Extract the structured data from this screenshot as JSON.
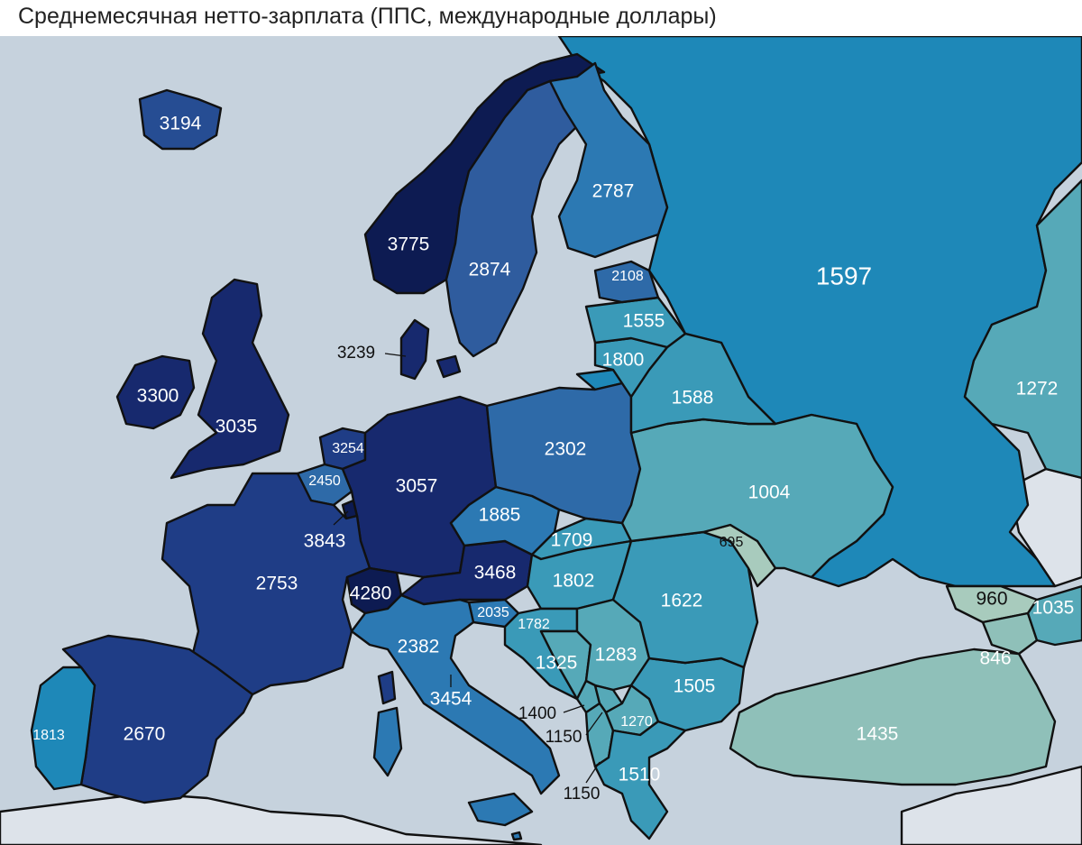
{
  "title": "Среднемесячная нетто-зарплата (ППС, международные доллары)",
  "colors": {
    "sea": "#c6d2dd",
    "nodata": "#dde3ea",
    "label_light": "#ffffff",
    "label_dark": "#111111",
    "scale": [
      "#0d1b52",
      "#17296e",
      "#1f3d86",
      "#264d93",
      "#2f5c9e",
      "#2e6aa8",
      "#2c79b3",
      "#1e88b8",
      "#3a9ab8",
      "#56a9b8",
      "#8fc0b9",
      "#a8cbbd"
    ]
  },
  "countries": {
    "iceland": {
      "value": "3194"
    },
    "norway": {
      "value": "3775"
    },
    "sweden": {
      "value": "2874"
    },
    "finland": {
      "value": "2787"
    },
    "denmark": {
      "value": "3239"
    },
    "ireland": {
      "value": "3300"
    },
    "uk": {
      "value": "3035"
    },
    "netherlands": {
      "value": "3254"
    },
    "belgium": {
      "value": "2450"
    },
    "luxembourg": {
      "value": "3843"
    },
    "germany": {
      "value": "3057"
    },
    "france": {
      "value": "2753"
    },
    "switzerland": {
      "value": "4280"
    },
    "austria": {
      "value": "3468"
    },
    "czechia": {
      "value": "1885"
    },
    "poland": {
      "value": "2302"
    },
    "slovakia": {
      "value": "1709"
    },
    "hungary": {
      "value": "1802"
    },
    "slovenia": {
      "value": "2035"
    },
    "croatia": {
      "value": "1782"
    },
    "bosnia": {
      "value": "1325"
    },
    "serbia": {
      "value": "1283"
    },
    "montenegro": {
      "value": "1400"
    },
    "albania": {
      "value": "1150"
    },
    "north_macedonia": {
      "value": "1270"
    },
    "kosovo": {
      "value": "1150"
    },
    "greece": {
      "value": "1510"
    },
    "bulgaria": {
      "value": "1505"
    },
    "romania": {
      "value": "1622"
    },
    "moldova": {
      "value": "695"
    },
    "ukraine": {
      "value": "1004"
    },
    "belarus": {
      "value": "1588"
    },
    "lithuania": {
      "value": "1800"
    },
    "latvia": {
      "value": "1555"
    },
    "estonia": {
      "value": "2108"
    },
    "russia": {
      "value": "1597"
    },
    "kazakhstan": {
      "value": "1272"
    },
    "georgia": {
      "value": "960"
    },
    "azerbaijan": {
      "value": "1035"
    },
    "armenia": {
      "value": "846"
    },
    "turkey": {
      "value": "1435"
    },
    "italy": {
      "value": "2382"
    },
    "malta": {
      "value": "3454"
    },
    "spain": {
      "value": "2670"
    },
    "portugal": {
      "value": "1813"
    }
  }
}
